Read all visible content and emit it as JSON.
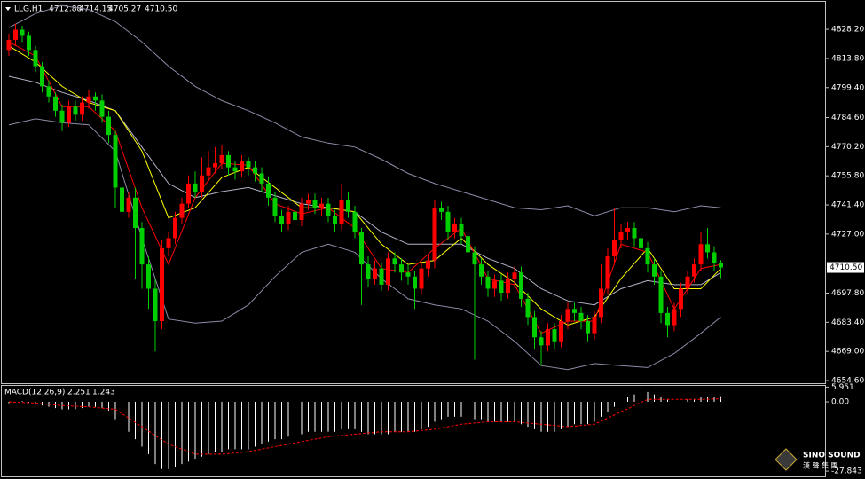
{
  "chart_data": [
    {
      "type": "candlestick",
      "header": {
        "symbol": "LLG,H1",
        "ohlc": [
          "4712.88",
          "4714.15",
          "4705.27",
          "4710.50"
        ]
      },
      "up_color": "#ff0000",
      "down_color": "#00d000",
      "open": [
        4818,
        4823,
        4828,
        4825,
        4818,
        4810,
        4800,
        4795,
        4788,
        4782,
        4790,
        4786,
        4792,
        4795,
        4793,
        4785,
        4776,
        4750,
        4738,
        4745,
        4730,
        4712,
        4700,
        4684,
        4720,
        4725,
        4735,
        4742,
        4752,
        4748,
        4756,
        4760,
        4762,
        4766,
        4760,
        4758,
        4763,
        4760,
        4757,
        4752,
        4745,
        4736,
        4732,
        4738,
        4734,
        4742,
        4744,
        4740,
        4742,
        4736,
        4732,
        4744,
        4738,
        4728,
        4712,
        4705,
        4710,
        4702,
        4715,
        4712,
        4708,
        4706,
        4700,
        4710,
        4714,
        4740,
        4738,
        4728,
        4732,
        4726,
        4718,
        4712,
        4706,
        4700,
        4704,
        4698,
        4705,
        4708,
        4695,
        4686,
        4676,
        4672,
        4680,
        4674,
        4684,
        4690,
        4688,
        4684,
        4678,
        4686,
        4700,
        4716,
        4724,
        4728,
        4730,
        4725,
        4720,
        4712,
        4706,
        4688,
        4682,
        4690,
        4700,
        4706,
        4712,
        4722,
        4718,
        4712.88
      ],
      "high": [
        4826,
        4831,
        4830,
        4827,
        4820,
        4812,
        4803,
        4797,
        4791,
        4793,
        4793,
        4795,
        4798,
        4797,
        4796,
        4788,
        4778,
        4753,
        4748,
        4750,
        4733,
        4716,
        4705,
        4724,
        4728,
        4738,
        4745,
        4756,
        4758,
        4765,
        4768,
        4770,
        4771,
        4768,
        4763,
        4766,
        4765,
        4763,
        4760,
        4755,
        4748,
        4739,
        4741,
        4741,
        4745,
        4747,
        4747,
        4745,
        4745,
        4739,
        4752,
        4748,
        4741,
        4730,
        4716,
        4714,
        4713,
        4718,
        4718,
        4715,
        4712,
        4709,
        4713,
        4717,
        4744,
        4743,
        4741,
        4735,
        4735,
        4729,
        4721,
        4715,
        4709,
        4707,
        4707,
        4708,
        4711,
        4711,
        4698,
        4689,
        4679,
        4683,
        4683,
        4687,
        4693,
        4693,
        4691,
        4687,
        4689,
        4712,
        4720,
        4740,
        4732,
        4733,
        4733,
        4728,
        4723,
        4715,
        4709,
        4691,
        4693,
        4703,
        4709,
        4715,
        4728,
        4730,
        4721,
        4714.15
      ],
      "low": [
        4815,
        4820,
        4822,
        4815,
        4807,
        4797,
        4792,
        4785,
        4778,
        4780,
        4783,
        4783,
        4789,
        4788,
        4782,
        4772,
        4740,
        4728,
        4735,
        4705,
        4700,
        4690,
        4669,
        4680,
        4716,
        4722,
        4732,
        4740,
        4745,
        4745,
        4753,
        4757,
        4759,
        4756,
        4754,
        4755,
        4756,
        4753,
        4748,
        4741,
        4733,
        4728,
        4729,
        4731,
        4731,
        4739,
        4737,
        4736,
        4733,
        4728,
        4729,
        4735,
        4725,
        4692,
        4701,
        4702,
        4699,
        4699,
        4708,
        4704,
        4702,
        4690,
        4697,
        4706,
        4710,
        4734,
        4724,
        4725,
        4722,
        4714,
        4665,
        4702,
        4696,
        4696,
        4694,
        4695,
        4701,
        4691,
        4682,
        4670,
        4662,
        4669,
        4670,
        4671,
        4680,
        4684,
        4680,
        4674,
        4675,
        4683,
        4697,
        4713,
        4720,
        4724,
        4721,
        4716,
        4708,
        4702,
        4683,
        4676,
        4679,
        4686,
        4697,
        4703,
        4709,
        4715,
        4709,
        4705.27
      ],
      "close": [
        4823,
        4828,
        4825,
        4818,
        4810,
        4800,
        4795,
        4788,
        4782,
        4790,
        4786,
        4792,
        4795,
        4793,
        4785,
        4776,
        4750,
        4738,
        4745,
        4730,
        4712,
        4700,
        4684,
        4720,
        4725,
        4735,
        4742,
        4752,
        4748,
        4756,
        4760,
        4762,
        4766,
        4760,
        4758,
        4763,
        4760,
        4757,
        4752,
        4745,
        4736,
        4732,
        4738,
        4734,
        4742,
        4744,
        4740,
        4742,
        4736,
        4732,
        4744,
        4738,
        4728,
        4712,
        4705,
        4710,
        4702,
        4715,
        4712,
        4708,
        4706,
        4700,
        4710,
        4714,
        4740,
        4738,
        4728,
        4732,
        4726,
        4718,
        4712,
        4706,
        4700,
        4704,
        4698,
        4705,
        4708,
        4695,
        4686,
        4676,
        4672,
        4680,
        4674,
        4684,
        4690,
        4688,
        4684,
        4678,
        4686,
        4700,
        4716,
        4724,
        4728,
        4730,
        4725,
        4720,
        4712,
        4706,
        4688,
        4682,
        4690,
        4700,
        4706,
        4712,
        4722,
        4718,
        4712.88,
        4710.5
      ],
      "lines": [
        {
          "color": "#8c8ca8",
          "x": [
            0,
            4,
            8,
            12,
            16,
            20,
            24,
            28,
            32,
            36,
            40,
            44,
            48,
            52,
            56,
            60,
            64,
            68,
            72,
            76,
            80,
            84,
            88,
            92,
            96,
            100,
            104,
            107
          ],
          "values": [
            4829,
            4836,
            4840,
            4838,
            4832,
            4822,
            4810,
            4800,
            4793,
            4788,
            4782,
            4775,
            4772,
            4770,
            4764,
            4757,
            4752,
            4748,
            4744,
            4740,
            4739,
            4741,
            4736,
            4740,
            4740,
            4738,
            4741,
            4740
          ]
        },
        {
          "color": "#b4b4c8",
          "x": [
            0,
            4,
            8,
            12,
            16,
            20,
            24,
            28,
            32,
            36,
            40,
            44,
            48,
            52,
            56,
            60,
            64,
            68,
            72,
            76,
            80,
            84,
            88,
            92,
            96,
            100,
            104,
            107
          ],
          "values": [
            4805,
            4802,
            4797,
            4793,
            4788,
            4770,
            4752,
            4745,
            4748,
            4750,
            4746,
            4742,
            4740,
            4738,
            4728,
            4722,
            4722,
            4722,
            4715,
            4710,
            4700,
            4694,
            4692,
            4700,
            4704,
            4702,
            4702,
            4708
          ]
        },
        {
          "color": "#8c8ca8",
          "x": [
            0,
            4,
            8,
            12,
            16,
            20,
            24,
            28,
            32,
            36,
            40,
            44,
            48,
            52,
            56,
            60,
            64,
            68,
            72,
            76,
            80,
            84,
            88,
            92,
            96,
            100,
            104,
            107
          ],
          "values": [
            4781,
            4784,
            4782,
            4781,
            4768,
            4725,
            4685,
            4683,
            4684,
            4692,
            4706,
            4718,
            4722,
            4718,
            4705,
            4695,
            4692,
            4690,
            4684,
            4674,
            4662,
            4660,
            4663,
            4662,
            4661,
            4668,
            4678,
            4686
          ]
        },
        {
          "color": "#ffff00",
          "x": [
            0,
            4,
            8,
            12,
            16,
            20,
            24,
            28,
            32,
            36,
            40,
            44,
            48,
            52,
            56,
            60,
            64,
            68,
            72,
            76,
            80,
            84,
            88,
            92,
            96,
            100,
            104,
            107
          ],
          "values": [
            4820,
            4812,
            4800,
            4792,
            4788,
            4768,
            4735,
            4740,
            4755,
            4760,
            4750,
            4740,
            4740,
            4738,
            4722,
            4712,
            4714,
            4725,
            4712,
            4703,
            4690,
            4682,
            4686,
            4705,
            4720,
            4700,
            4700,
            4710
          ]
        },
        {
          "color": "#ff0000",
          "x": [
            0,
            4,
            8,
            12,
            16,
            20,
            24,
            28,
            32,
            36,
            40,
            44,
            48,
            52,
            56,
            60,
            64,
            68,
            72,
            76,
            80,
            84,
            88,
            92,
            96,
            100,
            104,
            107
          ],
          "values": [
            4822,
            4815,
            4790,
            4790,
            4778,
            4740,
            4712,
            4745,
            4762,
            4761,
            4742,
            4737,
            4740,
            4730,
            4710,
            4708,
            4720,
            4730,
            4705,
            4702,
            4678,
            4684,
            4684,
            4722,
            4718,
            4690,
            4710,
            4712
          ]
        }
      ],
      "current_price": {
        "value": 4710.5,
        "label": "4710.50"
      },
      "ylim": [
        4653.3,
        4842.7
      ],
      "yticks": [
        {
          "value": 4828.2,
          "label": "4828.20"
        },
        {
          "value": 4813.8,
          "label": "4813.80"
        },
        {
          "value": 4799.4,
          "label": "4799.40"
        },
        {
          "value": 4784.6,
          "label": "4784.60"
        },
        {
          "value": 4770.2,
          "label": "4770.20"
        },
        {
          "value": 4755.8,
          "label": "4755.80"
        },
        {
          "value": 4741.4,
          "label": "4741.40"
        },
        {
          "value": 4727,
          "label": "4727.00"
        },
        {
          "value": 4697.8,
          "label": "4697.80"
        },
        {
          "value": 4683.4,
          "label": "4683.40"
        },
        {
          "value": 4669,
          "label": "4669.00"
        },
        {
          "value": 4654.6,
          "label": "4654.60"
        }
      ]
    },
    {
      "type": "macd",
      "label": "MACD(12,26,9)",
      "macd_value": 2.251,
      "signal_value": 1.243,
      "color": "#ffffff",
      "values": [
        -0.5,
        -0.2,
        0.3,
        -0.2,
        -1,
        -1.5,
        -2,
        -2.5,
        -3,
        -3,
        -3,
        -2.5,
        -2,
        -2,
        -2.5,
        -3.5,
        -7,
        -10,
        -12,
        -15,
        -18,
        -21,
        -25,
        -27,
        -27,
        -26,
        -25,
        -24,
        -23,
        -22,
        -21,
        -20,
        -20,
        -19,
        -19,
        -19,
        -19,
        -18,
        -17,
        -16,
        -15,
        -15,
        -14,
        -14,
        -13,
        -12,
        -12,
        -12,
        -12,
        -12,
        -11,
        -11,
        -11,
        -12,
        -13,
        -13,
        -13,
        -13,
        -12,
        -12,
        -12,
        -12,
        -11,
        -10,
        -8,
        -7,
        -6,
        -6,
        -6,
        -6,
        -7,
        -7,
        -8,
        -8,
        -8,
        -8,
        -8,
        -9,
        -10,
        -11,
        -12,
        -12,
        -12,
        -11,
        -10,
        -9,
        -9,
        -9,
        -8,
        -6,
        -4,
        -2,
        0,
        2,
        3,
        4,
        4,
        3,
        2,
        1,
        0,
        0,
        1,
        1,
        2,
        2,
        2,
        2.251
      ],
      "signal": {
        "color": "#ff0000",
        "dashed": true,
        "x": [
          0,
          4,
          8,
          12,
          16,
          20,
          24,
          28,
          32,
          36,
          40,
          44,
          48,
          52,
          56,
          60,
          64,
          68,
          72,
          76,
          80,
          84,
          88,
          92,
          96,
          100,
          104,
          107
        ],
        "values": [
          0,
          -0.5,
          -1.5,
          -2,
          -3,
          -10,
          -17,
          -21,
          -21,
          -20,
          -18,
          -16,
          -14,
          -13,
          -12,
          -12,
          -11,
          -9,
          -8,
          -8,
          -9,
          -10,
          -9,
          -4,
          1,
          1,
          1,
          1.243
        ]
      },
      "ylim": [
        -30.3,
        6.8
      ],
      "yticks": [
        5.951,
        {
          "value": 0,
          "label": "0.00"
        },
        -27.843
      ]
    }
  ],
  "logo": {
    "name": "SINO SOUND",
    "chinese": "漢 聲 集 團"
  }
}
